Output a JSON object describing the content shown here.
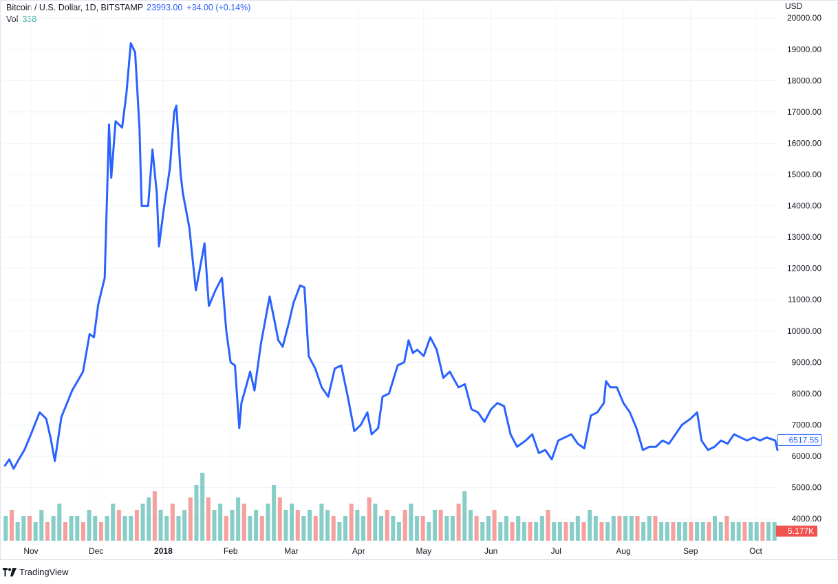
{
  "header": {
    "symbol": "Bitcoin / U.S. Dollar, 1D, BITSTAMP",
    "last_price": "23993.00",
    "change": "+34.00 (+0.14%)",
    "volume_label": "Vol",
    "volume_value": "338"
  },
  "axis": {
    "currency": "USD",
    "price_badge": "6517.55",
    "volume_badge": "5.177K"
  },
  "brand": {
    "name": "TradingView",
    "icon": "tradingview-logo-icon"
  },
  "colors": {
    "line": "#2962ff",
    "vol_up": "#26a69a",
    "vol_down": "#ef5350",
    "volume_badge": "#f05350",
    "grid": "#f0f3fa"
  },
  "chart_data": {
    "type": "line",
    "series": [
      {
        "name": "Bitcoin / U.S. Dollar",
        "points": [
          [
            "2017-10-20",
            5700
          ],
          [
            "2017-10-22",
            5900
          ],
          [
            "2017-10-24",
            5600
          ],
          [
            "2017-10-26",
            5850
          ],
          [
            "2017-10-29",
            6200
          ],
          [
            "2017-11-01",
            6700
          ],
          [
            "2017-11-05",
            7400
          ],
          [
            "2017-11-08",
            7200
          ],
          [
            "2017-11-10",
            6600
          ],
          [
            "2017-11-12",
            5850
          ],
          [
            "2017-11-15",
            7250
          ],
          [
            "2017-11-20",
            8100
          ],
          [
            "2017-11-25",
            8700
          ],
          [
            "2017-11-28",
            9900
          ],
          [
            "2017-11-30",
            9800
          ],
          [
            "2017-12-02",
            10850
          ],
          [
            "2017-12-05",
            11700
          ],
          [
            "2017-12-07",
            16600
          ],
          [
            "2017-12-08",
            14900
          ],
          [
            "2017-12-10",
            16700
          ],
          [
            "2017-12-13",
            16500
          ],
          [
            "2017-12-15",
            17600
          ],
          [
            "2017-12-17",
            19200
          ],
          [
            "2017-12-19",
            18900
          ],
          [
            "2017-12-21",
            16500
          ],
          [
            "2017-12-22",
            14000
          ],
          [
            "2017-12-25",
            14000
          ],
          [
            "2017-12-27",
            15800
          ],
          [
            "2017-12-29",
            14400
          ],
          [
            "2017-12-30",
            12700
          ],
          [
            "2018-01-01",
            13800
          ],
          [
            "2018-01-04",
            15200
          ],
          [
            "2018-01-06",
            17000
          ],
          [
            "2018-01-07",
            17200
          ],
          [
            "2018-01-09",
            15000
          ],
          [
            "2018-01-10",
            14400
          ],
          [
            "2018-01-13",
            13300
          ],
          [
            "2018-01-16",
            11300
          ],
          [
            "2018-01-20",
            12800
          ],
          [
            "2018-01-22",
            10800
          ],
          [
            "2018-01-25",
            11300
          ],
          [
            "2018-01-28",
            11700
          ],
          [
            "2018-01-30",
            10000
          ],
          [
            "2018-02-01",
            9000
          ],
          [
            "2018-02-03",
            8900
          ],
          [
            "2018-02-05",
            6900
          ],
          [
            "2018-02-06",
            7700
          ],
          [
            "2018-02-08",
            8200
          ],
          [
            "2018-02-10",
            8700
          ],
          [
            "2018-02-12",
            8100
          ],
          [
            "2018-02-15",
            9600
          ],
          [
            "2018-02-19",
            11100
          ],
          [
            "2018-02-21",
            10400
          ],
          [
            "2018-02-23",
            9700
          ],
          [
            "2018-02-25",
            9500
          ],
          [
            "2018-02-28",
            10300
          ],
          [
            "2018-03-02",
            10900
          ],
          [
            "2018-03-05",
            11450
          ],
          [
            "2018-03-07",
            11400
          ],
          [
            "2018-03-09",
            9200
          ],
          [
            "2018-03-12",
            8800
          ],
          [
            "2018-03-15",
            8200
          ],
          [
            "2018-03-18",
            7900
          ],
          [
            "2018-03-21",
            8800
          ],
          [
            "2018-03-24",
            8900
          ],
          [
            "2018-03-27",
            7900
          ],
          [
            "2018-03-30",
            6800
          ],
          [
            "2018-04-02",
            7000
          ],
          [
            "2018-04-05",
            7400
          ],
          [
            "2018-04-07",
            6700
          ],
          [
            "2018-04-10",
            6900
          ],
          [
            "2018-04-12",
            7900
          ],
          [
            "2018-04-15",
            8000
          ],
          [
            "2018-04-19",
            8900
          ],
          [
            "2018-04-22",
            9000
          ],
          [
            "2018-04-24",
            9700
          ],
          [
            "2018-04-26",
            9300
          ],
          [
            "2018-04-28",
            9400
          ],
          [
            "2018-05-01",
            9200
          ],
          [
            "2018-05-04",
            9800
          ],
          [
            "2018-05-07",
            9400
          ],
          [
            "2018-05-10",
            8500
          ],
          [
            "2018-05-13",
            8700
          ],
          [
            "2018-05-17",
            8200
          ],
          [
            "2018-05-20",
            8300
          ],
          [
            "2018-05-23",
            7500
          ],
          [
            "2018-05-26",
            7400
          ],
          [
            "2018-05-29",
            7100
          ],
          [
            "2018-06-01",
            7500
          ],
          [
            "2018-06-04",
            7700
          ],
          [
            "2018-06-07",
            7600
          ],
          [
            "2018-06-10",
            6700
          ],
          [
            "2018-06-13",
            6300
          ],
          [
            "2018-06-17",
            6500
          ],
          [
            "2018-06-20",
            6700
          ],
          [
            "2018-06-23",
            6100
          ],
          [
            "2018-06-26",
            6200
          ],
          [
            "2018-06-29",
            5900
          ],
          [
            "2018-07-02",
            6500
          ],
          [
            "2018-07-05",
            6600
          ],
          [
            "2018-07-08",
            6700
          ],
          [
            "2018-07-11",
            6400
          ],
          [
            "2018-07-14",
            6250
          ],
          [
            "2018-07-17",
            7300
          ],
          [
            "2018-07-20",
            7400
          ],
          [
            "2018-07-23",
            7700
          ],
          [
            "2018-07-24",
            8400
          ],
          [
            "2018-07-26",
            8200
          ],
          [
            "2018-07-29",
            8200
          ],
          [
            "2018-08-01",
            7700
          ],
          [
            "2018-08-04",
            7400
          ],
          [
            "2018-08-07",
            6900
          ],
          [
            "2018-08-10",
            6200
          ],
          [
            "2018-08-13",
            6300
          ],
          [
            "2018-08-16",
            6300
          ],
          [
            "2018-08-19",
            6500
          ],
          [
            "2018-08-22",
            6400
          ],
          [
            "2018-08-25",
            6700
          ],
          [
            "2018-08-28",
            7000
          ],
          [
            "2018-09-01",
            7200
          ],
          [
            "2018-09-04",
            7400
          ],
          [
            "2018-09-06",
            6500
          ],
          [
            "2018-09-09",
            6200
          ],
          [
            "2018-09-12",
            6300
          ],
          [
            "2018-09-15",
            6500
          ],
          [
            "2018-09-18",
            6400
          ],
          [
            "2018-09-21",
            6700
          ],
          [
            "2018-09-24",
            6600
          ],
          [
            "2018-09-27",
            6500
          ],
          [
            "2018-09-30",
            6600
          ],
          [
            "2018-10-03",
            6500
          ],
          [
            "2018-10-06",
            6600
          ],
          [
            "2018-10-08",
            6550
          ],
          [
            "2018-10-10",
            6500
          ],
          [
            "2018-10-11",
            6200
          ]
        ]
      }
    ],
    "volume": {
      "values_k": [
        4,
        5,
        3,
        4,
        4,
        3,
        5,
        3,
        4,
        6,
        3,
        4,
        4,
        3,
        5,
        4,
        3,
        4,
        6,
        5,
        4,
        4,
        5,
        6,
        7,
        8,
        5,
        4,
        6,
        4,
        5,
        7,
        9,
        11,
        7,
        5,
        6,
        4,
        5,
        7,
        6,
        4,
        5,
        4,
        6,
        9,
        7,
        5,
        6,
        5,
        4,
        5,
        4,
        6,
        5,
        4,
        3,
        4,
        6,
        5,
        4,
        7,
        6,
        4,
        5,
        4,
        3,
        5,
        6,
        4,
        4,
        3,
        5,
        5,
        4,
        4,
        6,
        8,
        5,
        4,
        3,
        4,
        5,
        3,
        4,
        3,
        4,
        3,
        3,
        3,
        4,
        5,
        3,
        3,
        3,
        3,
        4,
        3,
        5,
        4,
        3,
        3,
        4,
        4,
        4,
        4,
        4,
        3,
        4,
        4,
        3,
        3,
        3,
        3,
        3,
        3,
        3,
        3,
        3,
        4,
        3,
        4,
        3,
        3,
        3,
        3,
        3,
        3,
        3,
        3
      ],
      "scale_max_k": 40
    },
    "x_ticks": [
      "Nov",
      "Dec",
      "2018",
      "Feb",
      "Mar",
      "Apr",
      "May",
      "Jun",
      "Jul",
      "Aug",
      "Sep",
      "Oct"
    ],
    "y_ticks": [
      "20000.00",
      "19000.00",
      "18000.00",
      "17000.00",
      "16000.00",
      "15000.00",
      "14000.00",
      "13000.00",
      "12000.00",
      "11000.00",
      "10000.00",
      "9000.00",
      "8000.00",
      "7000.00",
      "6000.00",
      "5000.00",
      "4000.00"
    ],
    "y_range": [
      3300,
      20400
    ],
    "x_range": [
      "2017-10-19",
      "2018-10-11"
    ],
    "grid": true,
    "title": "Bitcoin / U.S. Dollar, 1D, BITSTAMP"
  }
}
